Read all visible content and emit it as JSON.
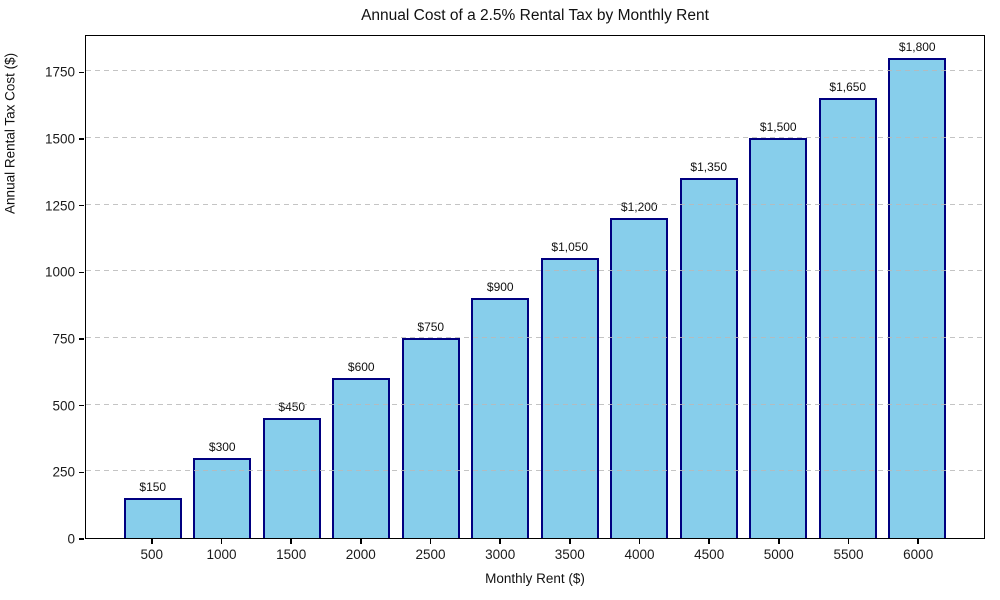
{
  "chart_data": {
    "type": "bar",
    "title": "Annual Cost of a 2.5% Rental Tax by Monthly Rent",
    "xlabel": "Monthly Rent ($)",
    "ylabel": "Annual Rental Tax Cost ($)",
    "categories": [
      "500",
      "1000",
      "1500",
      "2000",
      "2500",
      "3000",
      "3500",
      "4000",
      "4500",
      "5000",
      "5500",
      "6000"
    ],
    "values": [
      150,
      300,
      450,
      600,
      750,
      900,
      1050,
      1200,
      1350,
      1500,
      1650,
      1800
    ],
    "bar_labels": [
      "$150",
      "$300",
      "$450",
      "$600",
      "$750",
      "$900",
      "$1,050",
      "$1,200",
      "$1,350",
      "$1,500",
      "$1,650",
      "$1,800"
    ],
    "y_ticks": [
      0,
      250,
      500,
      750,
      1000,
      1250,
      1500,
      1750
    ],
    "ylim": [
      0,
      1890
    ],
    "grid": "horizontal-dashed",
    "legend": "none",
    "colors": {
      "bar_fill": "#87CEEB",
      "bar_edge": "#000080",
      "gridline": "#b9b9b9",
      "text": "#111111",
      "spine": "#000000",
      "background": "#ffffff"
    }
  }
}
